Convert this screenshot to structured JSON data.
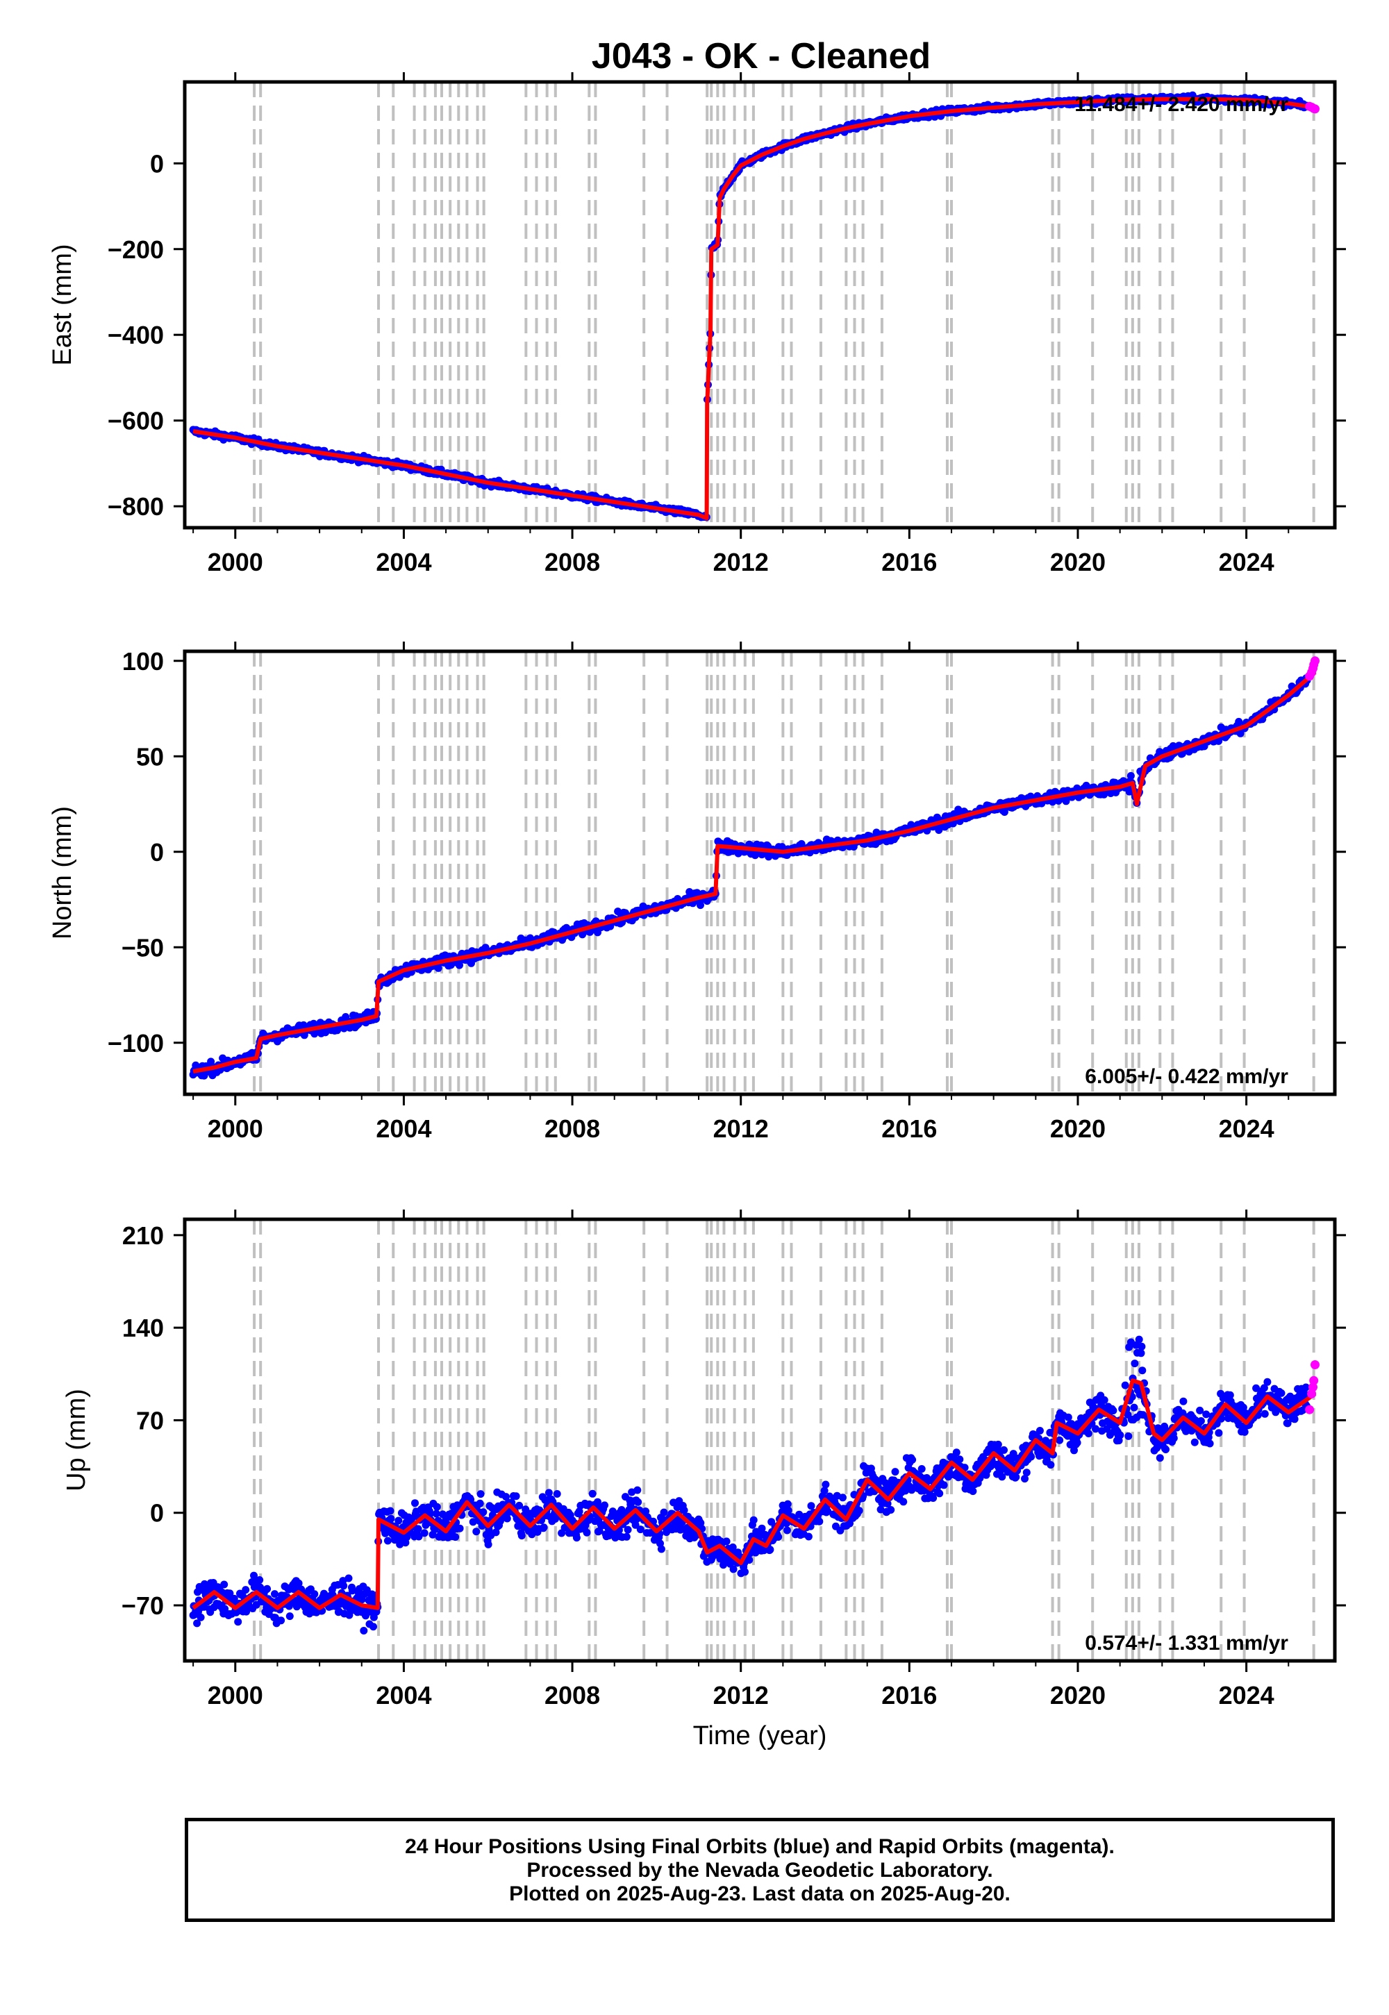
{
  "title": "J043  - OK - Cleaned",
  "x_axis_label": "Time (year)",
  "colors": {
    "final": "#0000ff",
    "rapid": "#ff00ff",
    "model": "#ff0000",
    "events": "#c0c0c0"
  },
  "footer": {
    "line1": "24 Hour Positions Using Final Orbits (blue) and Rapid Orbits (magenta).",
    "line2": "Processed by the Nevada Geodetic Laboratory.",
    "line3": "Plotted on 2025-Aug-23. Last data on 2025-Aug-20."
  },
  "chart_data": [
    {
      "type": "scatter",
      "component": "east",
      "ylabel": "East (mm)",
      "rate_text": "11.484+/- 2.420 mm/yr",
      "xlim": [
        1998.8,
        2026.1
      ],
      "ylim": [
        -850,
        190
      ],
      "x_ticks": [
        2000,
        2004,
        2008,
        2012,
        2016,
        2020,
        2024
      ],
      "y_ticks": [
        -800,
        -600,
        -400,
        -200,
        0
      ],
      "event_lines": [
        2000.45,
        2000.6,
        2003.4,
        2003.75,
        2004.25,
        2004.5,
        2004.75,
        2004.9,
        2005.1,
        2005.3,
        2005.5,
        2005.75,
        2005.9,
        2006.9,
        2007.15,
        2007.4,
        2007.6,
        2008.4,
        2008.55,
        2009.7,
        2010.25,
        2011.2,
        2011.3,
        2011.45,
        2011.6,
        2011.85,
        2012.1,
        2012.3,
        2013.0,
        2013.2,
        2013.9,
        2014.5,
        2014.7,
        2014.9,
        2015.35,
        2016.9,
        2017.0,
        2019.4,
        2019.55,
        2020.35,
        2021.15,
        2021.3,
        2021.45,
        2021.95,
        2022.25,
        2023.4,
        2023.95,
        2025.6
      ],
      "series": [
        {
          "role": "model",
          "x": [
            1999.0,
            2000.0,
            2001.0,
            2002.0,
            2003.0,
            2004.0,
            2005.0,
            2006.0,
            2007.0,
            2008.0,
            2009.0,
            2010.0,
            2011.0,
            2011.19,
            2011.2,
            2011.28,
            2011.3,
            2011.45,
            2011.5,
            2011.6,
            2011.8,
            2012.0,
            2012.5,
            2013.0,
            2013.5,
            2014.0,
            2014.5,
            2015.0,
            2016.0,
            2017.0,
            2018.0,
            2019.0,
            2020.0,
            2021.0,
            2022.0,
            2023.0,
            2024.0,
            2025.0,
            2025.63
          ],
          "y": [
            -625,
            -640,
            -660,
            -675,
            -690,
            -705,
            -725,
            -745,
            -760,
            -775,
            -790,
            -805,
            -820,
            -828,
            -560,
            -390,
            -200,
            -190,
            -80,
            -60,
            -30,
            -5,
            20,
            40,
            57,
            70,
            82,
            92,
            110,
            122,
            130,
            138,
            143,
            148,
            150,
            150,
            148,
            140,
            130
          ]
        }
      ]
    },
    {
      "type": "scatter",
      "component": "north",
      "ylabel": "North (mm)",
      "rate_text": "6.005+/- 0.422 mm/yr",
      "xlim": [
        1998.8,
        2026.1
      ],
      "ylim": [
        -127,
        105
      ],
      "x_ticks": [
        2000,
        2004,
        2008,
        2012,
        2016,
        2020,
        2024
      ],
      "y_ticks": [
        -100,
        -50,
        0,
        50,
        100
      ],
      "event_lines": [
        2000.45,
        2000.6,
        2003.4,
        2003.75,
        2004.25,
        2004.5,
        2004.75,
        2004.9,
        2005.1,
        2005.3,
        2005.5,
        2005.75,
        2005.9,
        2006.9,
        2007.15,
        2007.4,
        2007.6,
        2008.4,
        2008.55,
        2009.7,
        2010.25,
        2011.2,
        2011.3,
        2011.45,
        2011.6,
        2011.85,
        2012.1,
        2012.3,
        2013.0,
        2013.2,
        2013.9,
        2014.5,
        2014.7,
        2014.9,
        2015.35,
        2016.9,
        2017.0,
        2019.4,
        2019.55,
        2020.35,
        2021.15,
        2021.3,
        2021.45,
        2021.95,
        2022.25,
        2023.4,
        2023.95,
        2025.6
      ],
      "series": [
        {
          "role": "model",
          "x": [
            1999.0,
            1999.5,
            2000.0,
            2000.5,
            2000.6,
            2001.0,
            2002.0,
            2003.0,
            2003.35,
            2003.4,
            2004.0,
            2005.0,
            2006.0,
            2007.0,
            2008.0,
            2009.0,
            2010.0,
            2011.0,
            2011.4,
            2011.45,
            2012.0,
            2013.0,
            2014.0,
            2015.0,
            2016.0,
            2017.0,
            2018.0,
            2019.0,
            2020.0,
            2021.0,
            2021.3,
            2021.4,
            2021.6,
            2022.0,
            2023.0,
            2024.0,
            2025.0,
            2025.63
          ],
          "y": [
            -115,
            -113,
            -110,
            -108,
            -98,
            -96,
            -92,
            -88,
            -86,
            -68,
            -62,
            -57,
            -53,
            -48,
            -42,
            -36,
            -30,
            -24,
            -22,
            3,
            2,
            0,
            3,
            6,
            11,
            17,
            23,
            27,
            31,
            34,
            36,
            25,
            45,
            50,
            58,
            66,
            82,
            94
          ]
        }
      ],
      "rapid_points": {
        "x": [
          2025.5,
          2025.55,
          2025.58,
          2025.6,
          2025.63
        ],
        "y": [
          92,
          94,
          96,
          98,
          100
        ]
      }
    },
    {
      "type": "scatter",
      "component": "up",
      "ylabel": "Up (mm)",
      "rate_text": "0.574+/- 1.331 mm/yr",
      "xlim": [
        1998.8,
        2026.1
      ],
      "ylim": [
        -112,
        222
      ],
      "x_ticks": [
        2000,
        2004,
        2008,
        2012,
        2016,
        2020,
        2024
      ],
      "y_ticks": [
        -70,
        0,
        70,
        140,
        210
      ],
      "event_lines": [
        2000.45,
        2000.6,
        2003.4,
        2003.75,
        2004.25,
        2004.5,
        2004.75,
        2004.9,
        2005.1,
        2005.3,
        2005.5,
        2005.75,
        2005.9,
        2006.9,
        2007.15,
        2007.4,
        2007.6,
        2008.4,
        2008.55,
        2009.7,
        2010.25,
        2011.2,
        2011.3,
        2011.45,
        2011.6,
        2011.85,
        2012.1,
        2012.3,
        2013.0,
        2013.2,
        2013.9,
        2014.5,
        2014.7,
        2014.9,
        2015.35,
        2016.9,
        2017.0,
        2019.4,
        2019.55,
        2020.35,
        2021.15,
        2021.3,
        2021.45,
        2021.95,
        2022.25,
        2023.4,
        2023.95,
        2025.6
      ],
      "series": [
        {
          "role": "model",
          "x": [
            1999.0,
            1999.5,
            2000.0,
            2000.5,
            2001.0,
            2001.5,
            2002.0,
            2002.5,
            2003.0,
            2003.38,
            2003.4,
            2004.0,
            2004.5,
            2005.0,
            2005.5,
            2006.0,
            2006.5,
            2007.0,
            2007.5,
            2008.0,
            2008.5,
            2009.0,
            2009.5,
            2010.0,
            2010.5,
            2011.0,
            2011.2,
            2011.5,
            2012.0,
            2012.3,
            2012.6,
            2013.0,
            2013.5,
            2014.0,
            2014.5,
            2015.0,
            2015.5,
            2016.0,
            2016.5,
            2017.0,
            2017.5,
            2018.0,
            2018.5,
            2019.0,
            2019.4,
            2019.5,
            2020.0,
            2020.5,
            2021.0,
            2021.3,
            2021.5,
            2021.8,
            2022.0,
            2022.5,
            2023.0,
            2023.5,
            2024.0,
            2024.5,
            2025.0,
            2025.63
          ],
          "y": [
            -72,
            -60,
            -72,
            -60,
            -72,
            -60,
            -72,
            -62,
            -70,
            -72,
            -5,
            -15,
            -2,
            -14,
            8,
            -10,
            6,
            -10,
            6,
            -12,
            4,
            -12,
            2,
            -14,
            0,
            -14,
            -30,
            -25,
            -38,
            -20,
            -25,
            -2,
            -12,
            10,
            -5,
            25,
            10,
            30,
            18,
            38,
            25,
            45,
            32,
            55,
            45,
            68,
            60,
            78,
            68,
            100,
            98,
            60,
            55,
            72,
            60,
            82,
            68,
            88,
            76,
            90
          ]
        }
      ],
      "rapid_points": {
        "x": [
          2025.5,
          2025.55,
          2025.58,
          2025.6,
          2025.63
        ],
        "y": [
          78,
          90,
          95,
          100,
          112
        ]
      }
    }
  ]
}
